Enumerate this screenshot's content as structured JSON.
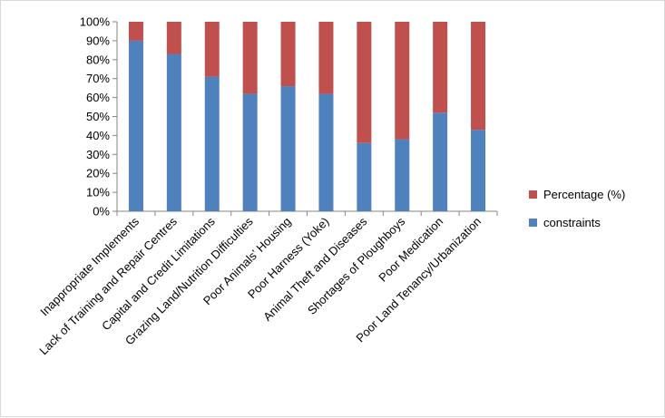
{
  "chart_data": {
    "type": "bar",
    "stacked": true,
    "percent_stacked": true,
    "categories": [
      "Inappropriate Implements",
      "Lack of Training and Repair Centres",
      "Capital and Credit Limitations",
      "Grazing Land/Nutrition Difficulties",
      "Poor Animals’ Housing",
      "Poor Harness (Yoke)",
      "Animal Theft and Diseases",
      "Shortages of Ploughboys",
      "Poor Medication",
      "Poor Land Tenancy/Urbanization"
    ],
    "series": [
      {
        "name": "constraints",
        "color": "#4f81bd",
        "values": [
          90,
          83,
          71,
          62,
          66,
          62,
          36,
          38,
          52,
          43
        ]
      },
      {
        "name": "Percentage (%)",
        "color": "#c0504d",
        "values": [
          10,
          17,
          29,
          38,
          34,
          38,
          64,
          62,
          48,
          57
        ]
      }
    ],
    "y_ticks": [
      "0%",
      "10%",
      "20%",
      "30%",
      "40%",
      "50%",
      "60%",
      "70%",
      "80%",
      "90%",
      "100%"
    ],
    "ylim": [
      0,
      100
    ],
    "title": "",
    "xlabel": "",
    "ylabel": "",
    "grid": false,
    "legend": {
      "position": "right",
      "entries": [
        "Percentage (%)",
        "constraints"
      ]
    }
  }
}
